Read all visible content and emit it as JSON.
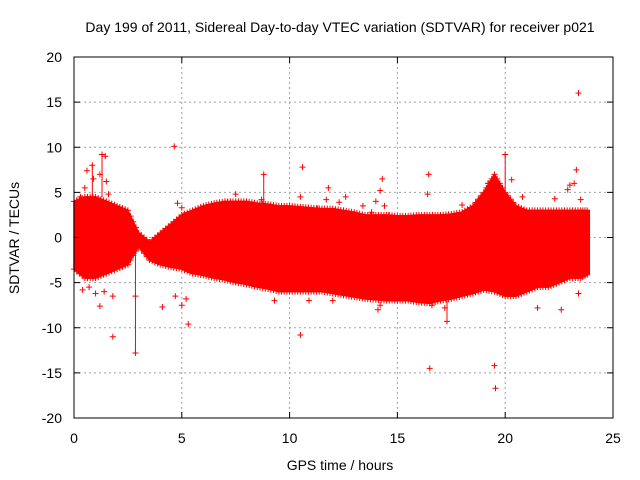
{
  "chart_data": {
    "type": "scatter",
    "title": "Day 199 of 2011, Sidereal Day-to-day VTEC variation (SDTVAR) for receiver p021",
    "xlabel": "GPS time / hours",
    "ylabel": "SDTVAR / TECUs",
    "xlim": [
      0,
      25
    ],
    "ylim": [
      -20,
      20
    ],
    "xticks": [
      0,
      5,
      10,
      15,
      20,
      25
    ],
    "yticks": [
      -20,
      -15,
      -10,
      -5,
      0,
      5,
      10,
      15,
      20
    ],
    "grid": true,
    "marker": "+",
    "color": "#ff0000",
    "band": {
      "x": [
        0.0,
        0.5,
        1.0,
        1.5,
        2.0,
        2.5,
        3.0,
        3.5,
        4.0,
        4.5,
        5.0,
        5.5,
        6.0,
        6.5,
        7.0,
        7.5,
        8.0,
        8.5,
        9.0,
        9.5,
        10.0,
        10.5,
        11.0,
        11.5,
        12.0,
        12.5,
        13.0,
        13.5,
        14.0,
        14.5,
        15.0,
        15.5,
        16.0,
        16.5,
        17.0,
        17.5,
        18.0,
        18.5,
        19.0,
        19.5,
        20.0,
        20.5,
        21.0,
        21.5,
        22.0,
        22.5,
        23.0,
        23.5,
        23.9
      ],
      "upper": [
        4.0,
        4.5,
        4.5,
        4.0,
        3.5,
        3.0,
        0.5,
        -0.5,
        0.5,
        1.5,
        2.5,
        3.0,
        3.5,
        3.8,
        4.0,
        4.0,
        4.0,
        3.8,
        3.7,
        3.5,
        3.5,
        3.4,
        3.3,
        3.2,
        3.2,
        3.0,
        2.8,
        2.5,
        2.5,
        2.5,
        2.4,
        2.4,
        2.5,
        2.5,
        2.5,
        2.6,
        2.8,
        3.5,
        5.0,
        7.0,
        5.0,
        3.5,
        3.0,
        3.0,
        3.0,
        3.0,
        3.0,
        3.0,
        3.0
      ],
      "lower": [
        -3.5,
        -4.5,
        -4.5,
        -4.0,
        -3.5,
        -3.0,
        -1.0,
        -2.5,
        -3.0,
        -3.3,
        -3.5,
        -4.0,
        -4.2,
        -4.5,
        -4.7,
        -5.0,
        -5.2,
        -5.5,
        -5.7,
        -6.0,
        -6.0,
        -6.0,
        -6.0,
        -6.0,
        -6.2,
        -6.4,
        -6.6,
        -6.8,
        -6.9,
        -7.0,
        -7.0,
        -7.0,
        -7.2,
        -7.3,
        -7.0,
        -6.8,
        -6.5,
        -6.2,
        -5.8,
        -6.0,
        -6.5,
        -6.5,
        -6.0,
        -5.5,
        -5.5,
        -5.0,
        -4.5,
        -4.5,
        -4.0
      ]
    },
    "outliers": [
      [
        0.3,
        4.5
      ],
      [
        0.5,
        5.5
      ],
      [
        0.6,
        7.4
      ],
      [
        0.85,
        8.0
      ],
      [
        0.9,
        6.5
      ],
      [
        1.2,
        7.0
      ],
      [
        1.3,
        9.2
      ],
      [
        1.45,
        9.0
      ],
      [
        1.5,
        6.2
      ],
      [
        1.6,
        4.8
      ],
      [
        0.4,
        -5.8
      ],
      [
        0.7,
        -5.5
      ],
      [
        1.0,
        -6.2
      ],
      [
        1.2,
        -7.6
      ],
      [
        1.4,
        -6.0
      ],
      [
        1.8,
        -6.5
      ],
      [
        1.8,
        -11.0
      ],
      [
        2.85,
        -12.8
      ],
      [
        2.85,
        -6.5
      ],
      [
        4.1,
        -7.7
      ],
      [
        4.65,
        10.1
      ],
      [
        4.8,
        3.8
      ],
      [
        5.0,
        3.3
      ],
      [
        4.7,
        -6.5
      ],
      [
        5.2,
        -6.8
      ],
      [
        5.3,
        -9.6
      ],
      [
        5.0,
        -7.5
      ],
      [
        5.1,
        2.5
      ],
      [
        7.5,
        4.8
      ],
      [
        8.7,
        4.2
      ],
      [
        8.8,
        7.0
      ],
      [
        9.3,
        -7.0
      ],
      [
        10.5,
        4.5
      ],
      [
        10.6,
        7.8
      ],
      [
        10.5,
        -10.8
      ],
      [
        10.9,
        -7.0
      ],
      [
        11.3,
        3.2
      ],
      [
        11.7,
        4.2
      ],
      [
        11.8,
        5.5
      ],
      [
        12.0,
        -7.0
      ],
      [
        12.3,
        3.9
      ],
      [
        12.6,
        4.5
      ],
      [
        13.4,
        3.5
      ],
      [
        13.8,
        2.8
      ],
      [
        14.0,
        4.0
      ],
      [
        14.2,
        5.2
      ],
      [
        14.3,
        6.5
      ],
      [
        14.4,
        3.5
      ],
      [
        14.1,
        -8.0
      ],
      [
        14.2,
        -7.5
      ],
      [
        14.6,
        2.5
      ],
      [
        16.4,
        4.8
      ],
      [
        16.45,
        7.0
      ],
      [
        16.5,
        -14.5
      ],
      [
        16.6,
        -7.5
      ],
      [
        17.2,
        -7.8
      ],
      [
        17.3,
        -9.3
      ],
      [
        18.0,
        3.6
      ],
      [
        18.9,
        3.8
      ],
      [
        19.2,
        6.0
      ],
      [
        19.5,
        -14.2
      ],
      [
        19.55,
        -16.7
      ],
      [
        19.6,
        3.8
      ],
      [
        20.0,
        9.2
      ],
      [
        20.3,
        6.4
      ],
      [
        20.8,
        4.5
      ],
      [
        21.5,
        -7.8
      ],
      [
        22.3,
        4.3
      ],
      [
        22.6,
        -8.0
      ],
      [
        22.9,
        5.3
      ],
      [
        23.0,
        5.8
      ],
      [
        23.2,
        6.0
      ],
      [
        23.3,
        7.5
      ],
      [
        23.4,
        16.0
      ],
      [
        23.4,
        -6.2
      ],
      [
        23.5,
        4.2
      ]
    ]
  }
}
